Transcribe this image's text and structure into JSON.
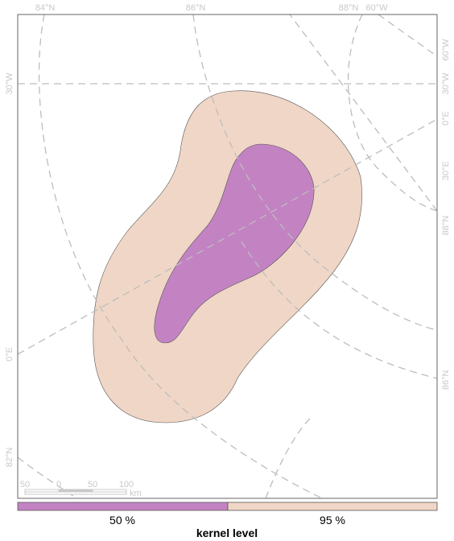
{
  "map": {
    "graticule_labels": {
      "top": [
        "84°N",
        "86°N",
        "88°N",
        "60°W"
      ],
      "right": [
        "60°W",
        "30°W",
        "0°E",
        "30°E",
        "88°N",
        "86°N"
      ],
      "left": [
        "30°W",
        "0°E",
        "82°N"
      ]
    },
    "scale_bar": {
      "ticks": [
        "50",
        "0",
        "50",
        "100"
      ],
      "unit": "km"
    },
    "colors": {
      "kernel_50": "#c383c3",
      "kernel_95": "#f0d6c6",
      "outline": "#555555",
      "graticule": "#bdbdbd",
      "frame": "#666666"
    }
  },
  "legend": {
    "title": "kernel level",
    "items": [
      {
        "label": "50 %",
        "color": "#c383c3"
      },
      {
        "label": "95 %",
        "color": "#f0d6c6"
      }
    ]
  }
}
